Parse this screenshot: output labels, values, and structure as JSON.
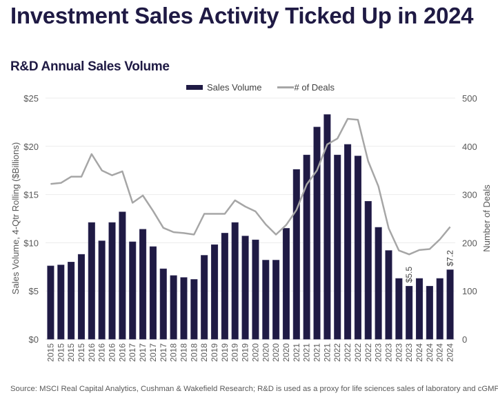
{
  "header": {
    "title": "Investment Sales Activity Ticked Up in 2024",
    "subtitle": "R&D Annual Sales Volume"
  },
  "footnote": "Source: MSCI Real Capital Analytics, Cushman & Wakefield Research; R&D is used as a proxy for life sciences sales of laboratory and cGMP properties.",
  "chart_data": {
    "type": "bar",
    "title": "R&D Annual Sales Volume",
    "legend": {
      "position": "top-center",
      "entries": [
        "Sales Volume",
        "# of Deals"
      ]
    },
    "colors": {
      "bars": "#1f1a44",
      "line": "#a6a6a6",
      "grid": "#ececec"
    },
    "categories": [
      "2015",
      "2015",
      "2015",
      "2015",
      "2016",
      "2016",
      "2016",
      "2016",
      "2017",
      "2017",
      "2017",
      "2017",
      "2018",
      "2018",
      "2018",
      "2018",
      "2019",
      "2019",
      "2019",
      "2019",
      "2020",
      "2020",
      "2020",
      "2020",
      "2021",
      "2021",
      "2021",
      "2021",
      "2022",
      "2022",
      "2022",
      "2022",
      "2023",
      "2023",
      "2023",
      "2023",
      "2024",
      "2024",
      "2024",
      "2024"
    ],
    "series": [
      {
        "name": "Sales Volume",
        "type": "bar",
        "axis": "left",
        "values": [
          7.6,
          7.7,
          8.0,
          8.8,
          12.1,
          10.2,
          12.1,
          13.2,
          10.1,
          11.4,
          9.6,
          7.3,
          6.6,
          6.4,
          6.2,
          8.7,
          9.8,
          11.0,
          12.1,
          10.7,
          10.3,
          8.2,
          8.2,
          11.5,
          17.6,
          19.1,
          22.0,
          23.3,
          19.1,
          20.2,
          19.0,
          14.3,
          11.6,
          9.2,
          6.3,
          5.5,
          6.3,
          5.5,
          6.3,
          7.2
        ]
      },
      {
        "name": "# of Deals",
        "type": "line",
        "axis": "right",
        "values": [
          322,
          324,
          337,
          337,
          384,
          350,
          340,
          348,
          283,
          298,
          266,
          231,
          222,
          220,
          217,
          260,
          260,
          260,
          288,
          275,
          265,
          238,
          217,
          237,
          268,
          321,
          350,
          404,
          416,
          457,
          455,
          369,
          317,
          230,
          184,
          176,
          185,
          187,
          207,
          233
        ]
      }
    ],
    "data_labels": [
      {
        "index": 35,
        "text": "$5.5"
      },
      {
        "index": 39,
        "text": "$7.2"
      }
    ],
    "xlabel": "",
    "ylabel": "Sales Volume, 4-Qtr Rolling ($Billions)",
    "ylim": [
      0,
      25
    ],
    "yticks": [
      "$0",
      "$5",
      "$10",
      "$15",
      "$20",
      "$25"
    ],
    "y2label": "Number of Deals",
    "y2lim": [
      0,
      500
    ],
    "y2ticks": [
      "0",
      "100",
      "200",
      "300",
      "400",
      "500"
    ],
    "grid": true
  }
}
